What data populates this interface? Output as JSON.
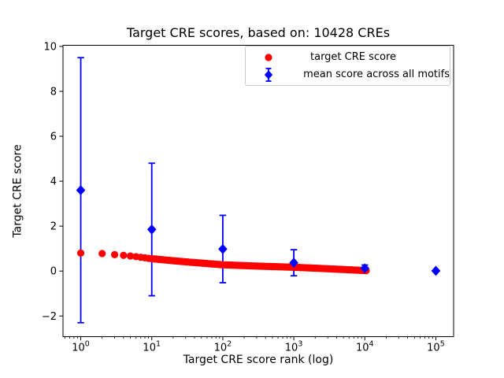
{
  "figure": {
    "background": "#ffffff"
  },
  "chart_data": {
    "type": "scatter",
    "title": "Target CRE scores, based on: 10428 CREs",
    "xlabel": "Target CRE score rank (log)",
    "ylabel": "Target CRE score",
    "n_cres": 10428,
    "xscale": "log",
    "grid": false,
    "legend_position": "upper right",
    "xlim_log10": [
      -0.25,
      5.25
    ],
    "ylim": [
      -2.92,
      10.05
    ],
    "axis_color": "#000000",
    "xticks": [
      {
        "log10": 0,
        "base": "10",
        "exp": "0"
      },
      {
        "log10": 1,
        "base": "10",
        "exp": "1"
      },
      {
        "log10": 2,
        "base": "10",
        "exp": "2"
      },
      {
        "log10": 3,
        "base": "10",
        "exp": "3"
      },
      {
        "log10": 4,
        "base": "10",
        "exp": "4"
      },
      {
        "log10": 5,
        "base": "10",
        "exp": "5"
      }
    ],
    "yticks": [
      {
        "value": -2,
        "label": "−2"
      },
      {
        "value": 0,
        "label": "0"
      },
      {
        "value": 2,
        "label": "2"
      },
      {
        "value": 4,
        "label": "4"
      },
      {
        "value": 6,
        "label": "6"
      },
      {
        "value": 8,
        "label": "8"
      },
      {
        "value": 10,
        "label": "10"
      }
    ],
    "series": [
      {
        "name": "target CRE score",
        "color": "#ff0000",
        "marker": "circle",
        "n_points": 10428,
        "rank_range": [
          1,
          10428
        ],
        "knots_log10rank_vs_score": [
          [
            0.0,
            0.8
          ],
          [
            0.3,
            0.78
          ],
          [
            0.48,
            0.73
          ],
          [
            0.6,
            0.7
          ],
          [
            0.7,
            0.67
          ],
          [
            0.78,
            0.64
          ],
          [
            0.85,
            0.61
          ],
          [
            0.9,
            0.59
          ],
          [
            0.95,
            0.57
          ],
          [
            1.0,
            0.55
          ],
          [
            1.3,
            0.46
          ],
          [
            1.52,
            0.4
          ],
          [
            2.0,
            0.28
          ],
          [
            2.5,
            0.22
          ],
          [
            3.0,
            0.17
          ],
          [
            3.5,
            0.1
          ],
          [
            4.018,
            0.02
          ]
        ]
      },
      {
        "name": "mean score across all motifs",
        "color": "#0000ff",
        "marker": "diamond",
        "points": [
          {
            "rank": 1,
            "mean": 3.6,
            "err": 5.9
          },
          {
            "rank": 10,
            "mean": 1.85,
            "err": 2.95
          },
          {
            "rank": 100,
            "mean": 0.98,
            "err": 1.5
          },
          {
            "rank": 1000,
            "mean": 0.37,
            "err": 0.58
          },
          {
            "rank": 10000,
            "mean": 0.12,
            "err": 0.15
          },
          {
            "rank": 100000,
            "mean": 0.01,
            "err": 0.04
          }
        ]
      }
    ]
  }
}
